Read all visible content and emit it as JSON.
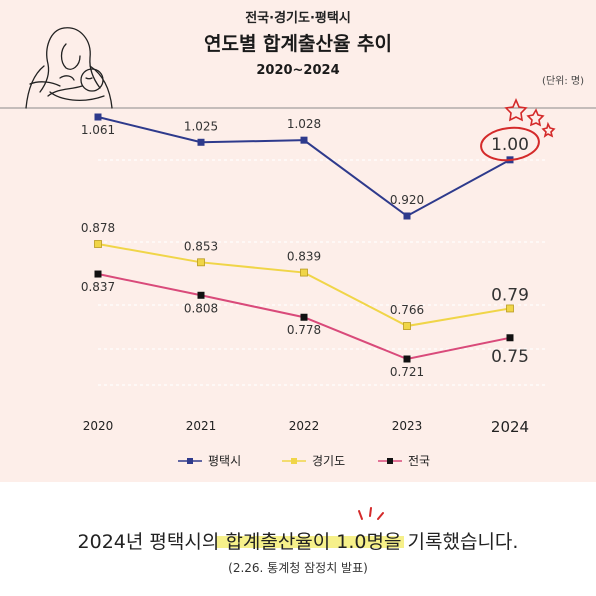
{
  "header": {
    "supertitle": "전국·경기도·평택시",
    "title": "연도별 합계출산율 추이",
    "range": "2020~2024",
    "unit": "(단위: 명)"
  },
  "colors": {
    "background": "#fdeee9",
    "pyeongtaek": "#2e3a8c",
    "gyeonggi": "#f0d548",
    "national": "#d94a7a",
    "highlight_circle": "#d42a2a",
    "text_highlight": "#f6f08a"
  },
  "chart_data": {
    "type": "line",
    "x": [
      "2020",
      "2021",
      "2022",
      "2023",
      "2024"
    ],
    "highlight_x": "2024",
    "series": [
      {
        "name": "평택시",
        "values": [
          1.061,
          1.025,
          1.028,
          0.92,
          1.0
        ],
        "labels": [
          "1.061",
          "1.025",
          "1.028",
          "0.920",
          "1.00"
        ],
        "marker_color": "#2e3a8c",
        "line_color": "#2e3a8c"
      },
      {
        "name": "경기도",
        "values": [
          0.878,
          0.853,
          0.839,
          0.766,
          0.79
        ],
        "labels": [
          "0.878",
          "0.853",
          "0.839",
          "0.766",
          "0.79"
        ],
        "marker_color": "#f0d548",
        "line_color": "#f0d548"
      },
      {
        "name": "전국",
        "values": [
          0.837,
          0.808,
          0.778,
          0.721,
          0.75
        ],
        "labels": [
          "0.837",
          "0.808",
          "0.778",
          "0.721",
          "0.75"
        ],
        "marker_color": "#111111",
        "line_color": "#d94a7a"
      }
    ],
    "legend_position": "bottom",
    "grid": "dashed horizontal",
    "annotation": "circled 1.00 with stars"
  },
  "caption": {
    "text_before": "2024년 평택시의 ",
    "text_highlight": "합계출산율이 1.0명",
    "text_after": "을 기록했습니다.",
    "source": "(2.26. 통계청 잠정치 발표)"
  },
  "illustration": {
    "icon": "mother-holding-baby-icon"
  }
}
